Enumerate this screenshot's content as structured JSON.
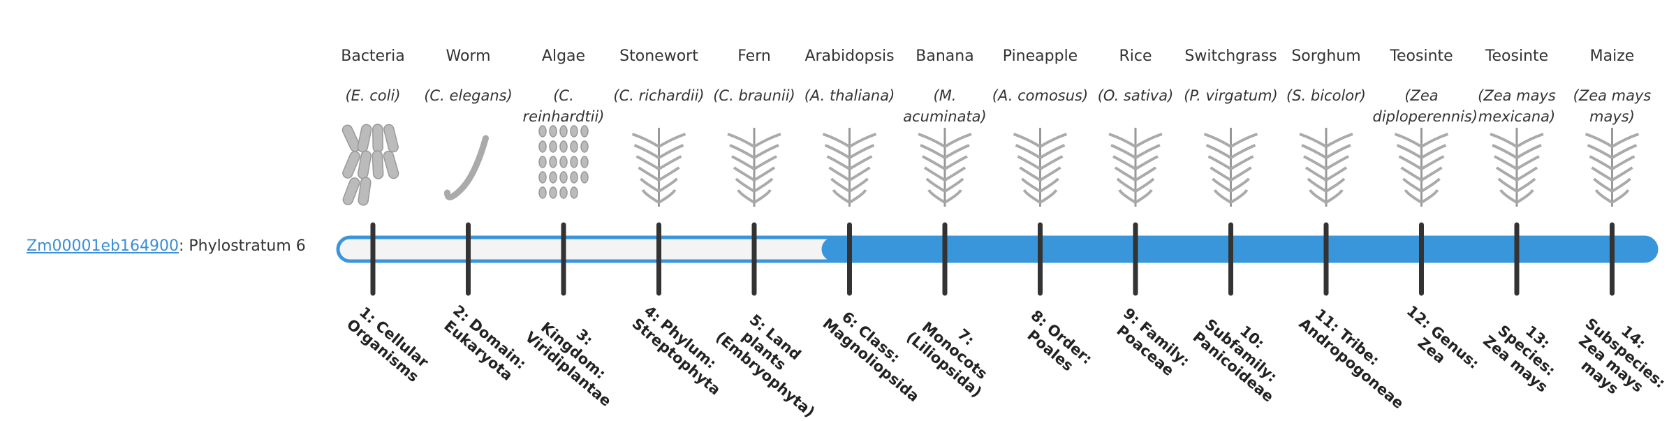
{
  "gene": {
    "id": "Zm00001eb164900",
    "label": ": Phylostratum 6"
  },
  "strata": [
    {
      "name": "Bacteria",
      "species": "(E. coli)",
      "level": "1: Cellular Organisms"
    },
    {
      "name": "Worm",
      "species": "(C. elegans)",
      "level": "2: Domain: Eukaryota"
    },
    {
      "name": "Algae",
      "species": "(C. reinhardtii)",
      "level": "3: Kingdom: Viridiplantae"
    },
    {
      "name": "Stonewort",
      "species": "(C. richardii)",
      "level": "4: Phylum: Streptophyta"
    },
    {
      "name": "Fern",
      "species": "(C. braunii)",
      "level": "5: Land plants (Embryophyta)"
    },
    {
      "name": "Arabidopsis",
      "species": "(A. thaliana)",
      "level": "6: Class: Magnoliopsida"
    },
    {
      "name": "Banana",
      "species": "(M. acuminata)",
      "level": "7: Monocots (Liliopsida)"
    },
    {
      "name": "Pineapple",
      "species": "(A. comosus)",
      "level": "8: Order: Poales"
    },
    {
      "name": "Rice",
      "species": "(O. sativa)",
      "level": "9: Family: Poaceae"
    },
    {
      "name": "Switchgrass",
      "species": "(P. virgatum)",
      "level": "10: Subfamily: Panicoideae"
    },
    {
      "name": "Sorghum",
      "species": "(S. bicolor)",
      "level": "11: Tribe: Andropogoneae"
    },
    {
      "name": "Teosinte",
      "species": "(Zea diploperennis)",
      "level": "12: Genus: Zea"
    },
    {
      "name": "Teosinte",
      "species": "(Zea mays mexicana)",
      "level": "13: Species: Zea mays"
    },
    {
      "name": "Maize",
      "species": "(Zea mays mays)",
      "level": "14: Subspecies: Zea mays mays"
    }
  ]
}
